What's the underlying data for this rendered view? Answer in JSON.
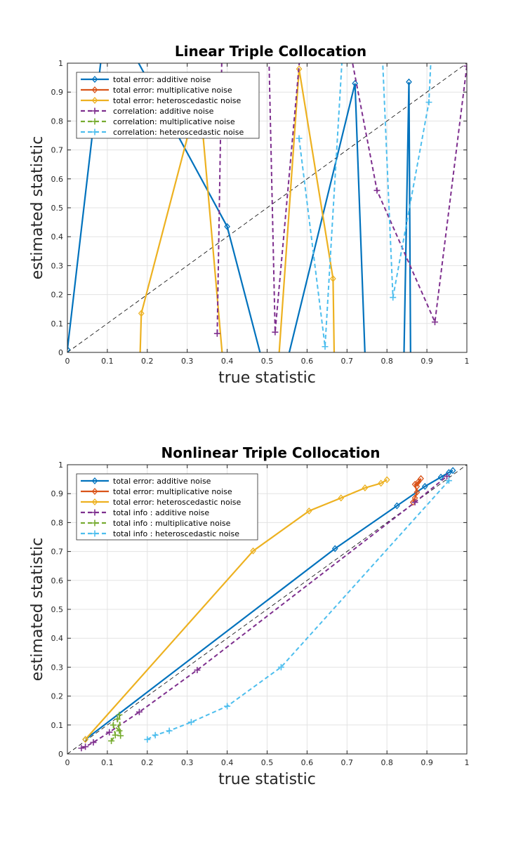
{
  "chart_data": [
    {
      "type": "line",
      "title": "Linear Triple Collocation",
      "xlabel": "true statistic",
      "ylabel": "estimated statistic",
      "xlim": [
        0,
        1
      ],
      "ylim": [
        0,
        1
      ],
      "xticks": [
        "0",
        "0.1",
        "0.2",
        "0.3",
        "0.4",
        "0.5",
        "0.6",
        "0.7",
        "0.8",
        "0.9",
        "1"
      ],
      "yticks": [
        "0",
        "0.1",
        "0.2",
        "0.3",
        "0.4",
        "0.5",
        "0.6",
        "0.7",
        "0.8",
        "0.9",
        "1"
      ],
      "grid": true,
      "legend_position": "top-left",
      "reference_line": "y = x (dashed black)",
      "series": [
        {
          "name": "total error: additive noise",
          "color": "#0072BD",
          "style": "solid",
          "marker": "diamond",
          "points": [
            [
              0.0,
              0.01
            ],
            [
              0.1,
              1.2
            ],
            [
              0.4,
              0.435
            ],
            [
              0.52,
              -0.2
            ],
            [
              0.72,
              0.93
            ],
            [
              0.75,
              -0.2
            ],
            [
              0.84,
              -0.2
            ],
            [
              0.855,
              0.935
            ],
            [
              0.86,
              -0.2
            ]
          ]
        },
        {
          "name": "total error: multiplicative noise",
          "color": "#D95319",
          "style": "solid",
          "marker": "diamond",
          "points": []
        },
        {
          "name": "total error: heteroscedastic noise",
          "color": "#EDB120",
          "style": "solid",
          "marker": "diamond",
          "points": [
            [
              0.18,
              -0.1
            ],
            [
              0.185,
              0.135
            ],
            [
              0.33,
              0.9
            ],
            [
              0.4,
              -0.2
            ],
            [
              0.52,
              -0.2
            ],
            [
              0.58,
              0.98
            ],
            [
              0.665,
              0.255
            ],
            [
              0.67,
              -0.2
            ]
          ]
        },
        {
          "name": "correlation: additive noise",
          "color": "#7E2F8E",
          "style": "dashed",
          "marker": "plus",
          "points": [
            [
              0.375,
              0.065
            ],
            [
              0.39,
              1.3
            ],
            [
              0.5,
              1.3
            ],
            [
              0.52,
              0.07
            ],
            [
              0.6,
              1.3
            ],
            [
              0.7,
              1.1
            ],
            [
              0.775,
              0.56
            ],
            [
              0.92,
              0.105
            ],
            [
              1.0,
              0.99
            ]
          ]
        },
        {
          "name": "correlation: multiplicative noise",
          "color": "#77AC30",
          "style": "dashed",
          "marker": "plus",
          "points": []
        },
        {
          "name": "correlation: heteroscedastic noise",
          "color": "#4DBEEE",
          "style": "dashed",
          "marker": "plus",
          "points": [
            [
              0.58,
              0.74
            ],
            [
              0.645,
              0.02
            ],
            [
              0.7,
              1.3
            ],
            [
              0.78,
              1.3
            ],
            [
              0.815,
              0.19
            ],
            [
              0.905,
              0.865
            ],
            [
              0.92,
              1.3
            ]
          ]
        }
      ]
    },
    {
      "type": "line",
      "title": "Nonlinear Triple Collocation",
      "xlabel": "true statistic",
      "ylabel": "estimated statistic",
      "xlim": [
        0,
        1
      ],
      "ylim": [
        0,
        1
      ],
      "xticks": [
        "0",
        "0.1",
        "0.2",
        "0.3",
        "0.4",
        "0.5",
        "0.6",
        "0.7",
        "0.8",
        "0.9",
        "1"
      ],
      "yticks": [
        "0",
        "0.1",
        "0.2",
        "0.3",
        "0.4",
        "0.5",
        "0.6",
        "0.7",
        "0.8",
        "0.9",
        "1"
      ],
      "grid": true,
      "legend_position": "top-left",
      "reference_line": "y = x (dashed black)",
      "series": [
        {
          "name": "total error: additive noise",
          "color": "#0072BD",
          "style": "solid",
          "marker": "diamond",
          "points": [
            [
              0.045,
              0.05
            ],
            [
              0.67,
              0.71
            ],
            [
              0.825,
              0.858
            ],
            [
              0.895,
              0.925
            ],
            [
              0.935,
              0.957
            ],
            [
              0.955,
              0.973
            ],
            [
              0.965,
              0.98
            ]
          ]
        },
        {
          "name": "total error: multiplicative noise",
          "color": "#D95319",
          "style": "solid",
          "marker": "diamond",
          "points": [
            [
              0.865,
              0.87
            ],
            [
              0.87,
              0.885
            ],
            [
              0.875,
              0.905
            ],
            [
              0.87,
              0.932
            ],
            [
              0.878,
              0.94
            ],
            [
              0.885,
              0.952
            ],
            [
              0.875,
              0.925
            ]
          ]
        },
        {
          "name": "total error: heteroscedastic noise",
          "color": "#EDB120",
          "style": "solid",
          "marker": "diamond",
          "points": [
            [
              0.045,
              0.05
            ],
            [
              0.465,
              0.702
            ],
            [
              0.605,
              0.84
            ],
            [
              0.685,
              0.885
            ],
            [
              0.745,
              0.92
            ],
            [
              0.785,
              0.936
            ],
            [
              0.8,
              0.948
            ]
          ]
        },
        {
          "name": "total info : additive noise",
          "color": "#7E2F8E",
          "style": "dashed",
          "marker": "plus",
          "points": [
            [
              0.035,
              0.02
            ],
            [
              0.045,
              0.025
            ],
            [
              0.065,
              0.04
            ],
            [
              0.105,
              0.075
            ],
            [
              0.18,
              0.145
            ],
            [
              0.325,
              0.29
            ],
            [
              0.87,
              0.87
            ],
            [
              0.95,
              0.96
            ]
          ]
        },
        {
          "name": "total info : multiplicative noise",
          "color": "#77AC30",
          "style": "dashed",
          "marker": "plus",
          "points": [
            [
              0.11,
              0.045
            ],
            [
              0.12,
              0.065
            ],
            [
              0.115,
              0.1
            ],
            [
              0.13,
              0.08
            ],
            [
              0.125,
              0.12
            ],
            [
              0.13,
              0.135
            ],
            [
              0.133,
              0.063
            ]
          ]
        },
        {
          "name": "total info : heteroscedastic noise",
          "color": "#4DBEEE",
          "style": "dashed",
          "marker": "plus",
          "points": [
            [
              0.2,
              0.05
            ],
            [
              0.22,
              0.065
            ],
            [
              0.255,
              0.08
            ],
            [
              0.31,
              0.11
            ],
            [
              0.4,
              0.165
            ],
            [
              0.535,
              0.3
            ],
            [
              0.955,
              0.945
            ]
          ]
        }
      ]
    }
  ]
}
